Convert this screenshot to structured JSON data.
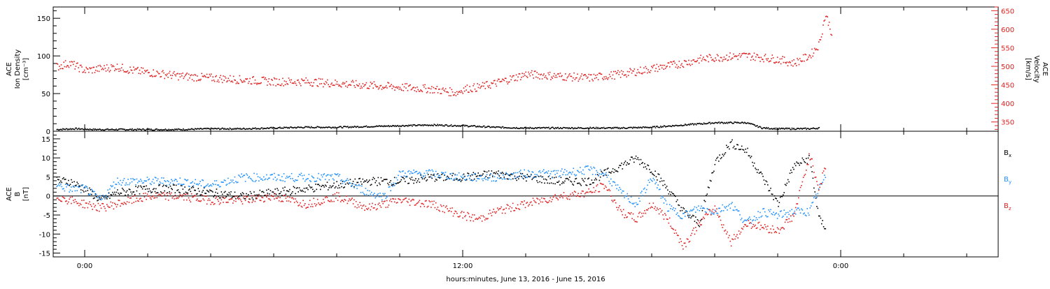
{
  "chart_data": [
    {
      "type": "scatter",
      "title": "",
      "x_axis": {
        "label": "hours:minutes, June 13, 2016 - June 15, 2016",
        "range_hours": [
          -1,
          29
        ],
        "ticks": [
          {
            "x": 0,
            "label": "0:00"
          },
          {
            "x": 12,
            "label": "12:00"
          },
          {
            "x": 24,
            "label": "0:00"
          }
        ],
        "minor_every_hours": 2
      },
      "left_axis": {
        "label_lines": [
          "ACE",
          "Ion Density",
          "[cm⁻³]"
        ],
        "range": [
          0,
          165
        ],
        "ticks": [
          0,
          50,
          100,
          150
        ],
        "color": "#000000"
      },
      "right_axis": {
        "label_lines": [
          "ACE",
          "Velocity",
          "[km/s]"
        ],
        "range": [
          325,
          660
        ],
        "ticks": [
          350,
          400,
          450,
          500,
          550,
          600,
          650
        ],
        "color": "#e02020"
      },
      "series": [
        {
          "axis": "left",
          "color": "#000000",
          "points": [
            [
              -0.9,
              3
            ],
            [
              -0.3,
              4
            ],
            [
              0.3,
              3
            ],
            [
              1,
              3
            ],
            [
              2,
              3
            ],
            [
              3,
              3
            ],
            [
              4,
              4
            ],
            [
              5,
              4
            ],
            [
              6,
              5
            ],
            [
              7,
              6
            ],
            [
              8,
              6
            ],
            [
              9,
              7
            ],
            [
              10,
              8
            ],
            [
              11,
              9
            ],
            [
              12,
              8
            ],
            [
              13,
              6
            ],
            [
              14,
              5
            ],
            [
              15,
              5
            ],
            [
              16,
              5
            ],
            [
              17,
              5
            ],
            [
              18,
              6
            ],
            [
              19,
              9
            ],
            [
              20,
              12
            ],
            [
              21,
              12
            ],
            [
              21.5,
              5
            ],
            [
              22,
              4
            ],
            [
              23,
              4
            ],
            [
              23.3,
              5
            ]
          ]
        },
        {
          "axis": "right",
          "color": "#e02020",
          "points": [
            [
              -0.9,
              500
            ],
            [
              -0.5,
              510
            ],
            [
              0,
              490
            ],
            [
              0.5,
              495
            ],
            [
              1,
              500
            ],
            [
              1.5,
              490
            ],
            [
              2,
              485
            ],
            [
              3,
              475
            ],
            [
              4,
              470
            ],
            [
              5,
              465
            ],
            [
              6,
              460
            ],
            [
              7,
              460
            ],
            [
              8,
              455
            ],
            [
              9,
              450
            ],
            [
              10,
              445
            ],
            [
              11,
              440
            ],
            [
              11.8,
              430
            ],
            [
              12,
              440
            ],
            [
              12.5,
              445
            ],
            [
              13,
              455
            ],
            [
              14,
              480
            ],
            [
              15,
              475
            ],
            [
              16,
              470
            ],
            [
              17,
              480
            ],
            [
              18,
              495
            ],
            [
              19,
              510
            ],
            [
              19.5,
              520
            ],
            [
              20,
              525
            ],
            [
              21,
              530
            ],
            [
              22,
              520
            ],
            [
              22.5,
              510
            ],
            [
              23,
              530
            ],
            [
              23.3,
              560
            ],
            [
              23.4,
              600
            ],
            [
              23.5,
              640
            ],
            [
              23.6,
              620
            ],
            [
              23.7,
              590
            ]
          ]
        }
      ]
    },
    {
      "type": "scatter",
      "title": "",
      "x_axis": {
        "label": "hours:minutes, June 13, 2016 - June 15, 2016",
        "range_hours": [
          -1,
          29
        ],
        "ticks": [
          {
            "x": 0,
            "label": "0:00"
          },
          {
            "x": 12,
            "label": "12:00"
          },
          {
            "x": 24,
            "label": "0:00"
          }
        ]
      },
      "left_axis": {
        "label_lines": [
          "ACE",
          "B",
          "[nT]"
        ],
        "range": [
          -16,
          17
        ],
        "ticks": [
          -15,
          -10,
          -5,
          0,
          5,
          10,
          15
        ],
        "zero_line": true
      },
      "legend": {
        "placement": "right",
        "entries": [
          {
            "base": "B",
            "sub": "x",
            "color": "#000000"
          },
          {
            "base": "B",
            "sub": "y",
            "color": "#1e90ff"
          },
          {
            "base": "B",
            "sub": "z",
            "color": "#e02020"
          }
        ]
      },
      "series": [
        {
          "name": "Bx",
          "color": "#000000",
          "points": [
            [
              -0.9,
              4
            ],
            [
              -0.5,
              4
            ],
            [
              0,
              2
            ],
            [
              0.5,
              -1
            ],
            [
              1,
              1
            ],
            [
              2,
              2
            ],
            [
              3,
              2
            ],
            [
              4,
              1
            ],
            [
              5,
              0
            ],
            [
              6,
              1
            ],
            [
              7,
              2
            ],
            [
              8,
              3
            ],
            [
              9,
              4
            ],
            [
              10,
              4
            ],
            [
              11,
              5
            ],
            [
              12,
              5
            ],
            [
              13,
              6
            ],
            [
              14,
              5
            ],
            [
              15,
              4
            ],
            [
              16,
              4
            ],
            [
              16.5,
              6
            ],
            [
              17,
              8
            ],
            [
              17.5,
              10
            ],
            [
              18,
              7
            ],
            [
              18.5,
              2
            ],
            [
              19,
              -4
            ],
            [
              19.5,
              -7
            ],
            [
              20,
              9
            ],
            [
              20.5,
              14
            ],
            [
              21,
              12
            ],
            [
              21.5,
              5
            ],
            [
              22,
              -2
            ],
            [
              22.5,
              8
            ],
            [
              23,
              10
            ],
            [
              23.3,
              -6
            ],
            [
              23.5,
              -8
            ]
          ]
        },
        {
          "name": "By",
          "color": "#1e90ff",
          "points": [
            [
              -0.9,
              3
            ],
            [
              -0.5,
              2
            ],
            [
              0,
              2
            ],
            [
              0.5,
              -1
            ],
            [
              1,
              4
            ],
            [
              2,
              4
            ],
            [
              3,
              4
            ],
            [
              4,
              3
            ],
            [
              5,
              5
            ],
            [
              6,
              5
            ],
            [
              7,
              5
            ],
            [
              8,
              5
            ],
            [
              9,
              1
            ],
            [
              9.5,
              0
            ],
            [
              10,
              6
            ],
            [
              11,
              6
            ],
            [
              12,
              5
            ],
            [
              13,
              5
            ],
            [
              14,
              6
            ],
            [
              15,
              6
            ],
            [
              16,
              7
            ],
            [
              16.5,
              6
            ],
            [
              17,
              1
            ],
            [
              17.5,
              -2
            ],
            [
              18,
              5
            ],
            [
              18.5,
              -3
            ],
            [
              19,
              -5
            ],
            [
              19.5,
              -3
            ],
            [
              20,
              -4
            ],
            [
              20.5,
              -2
            ],
            [
              21,
              -7
            ],
            [
              21.5,
              -4
            ],
            [
              22,
              -5
            ],
            [
              22.5,
              -4
            ],
            [
              23,
              -4
            ],
            [
              23.3,
              2
            ],
            [
              23.5,
              5
            ]
          ]
        },
        {
          "name": "Bz",
          "color": "#e02020",
          "points": [
            [
              -0.9,
              0
            ],
            [
              -0.5,
              -1
            ],
            [
              0,
              -2
            ],
            [
              0.5,
              -3
            ],
            [
              1,
              -2
            ],
            [
              2,
              0
            ],
            [
              3,
              0
            ],
            [
              4,
              -1
            ],
            [
              5,
              -1
            ],
            [
              6,
              0
            ],
            [
              7,
              -2
            ],
            [
              8,
              0
            ],
            [
              9,
              -3
            ],
            [
              10,
              -1
            ],
            [
              11,
              -2
            ],
            [
              12,
              -5
            ],
            [
              12.5,
              -6
            ],
            [
              13,
              -4
            ],
            [
              14,
              -2
            ],
            [
              15,
              0
            ],
            [
              16,
              1
            ],
            [
              16.5,
              3
            ],
            [
              17,
              -4
            ],
            [
              17.5,
              -6
            ],
            [
              18,
              -2
            ],
            [
              18.5,
              -6
            ],
            [
              19,
              -13
            ],
            [
              19.5,
              -7
            ],
            [
              20,
              -3
            ],
            [
              20.5,
              -12
            ],
            [
              21,
              -7
            ],
            [
              21.5,
              -8
            ],
            [
              22,
              -9
            ],
            [
              22.5,
              -5
            ],
            [
              23,
              11
            ],
            [
              23.3,
              2
            ],
            [
              23.5,
              8
            ]
          ]
        }
      ]
    }
  ]
}
